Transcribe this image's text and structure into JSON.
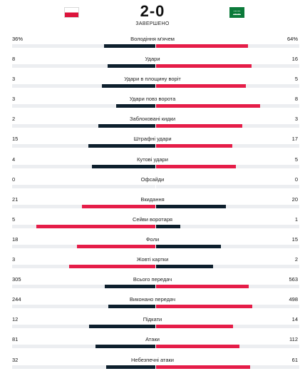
{
  "match": {
    "score": "2-0",
    "status": "ЗАВЕРШЕНО"
  },
  "colors": {
    "dark": "#0d1f2d",
    "red": "#e51d48",
    "track": "#eceef1"
  },
  "flags": {
    "home": "flag-poland-icon",
    "away": "flag-saudi-arabia-icon"
  },
  "stats": [
    {
      "name": "Володіння м'ячем",
      "home": "36%",
      "away": "64%",
      "home_val": 36,
      "away_val": 64
    },
    {
      "name": "Удари",
      "home": "8",
      "away": "16",
      "home_val": 8,
      "away_val": 16
    },
    {
      "name": "Удари в площину воріт",
      "home": "3",
      "away": "5",
      "home_val": 3,
      "away_val": 5
    },
    {
      "name": "Удари повз ворота",
      "home": "3",
      "away": "8",
      "home_val": 3,
      "away_val": 8
    },
    {
      "name": "Заблоковані кидки",
      "home": "2",
      "away": "3",
      "home_val": 2,
      "away_val": 3
    },
    {
      "name": "Штрафні удари",
      "home": "15",
      "away": "17",
      "home_val": 15,
      "away_val": 17
    },
    {
      "name": "Кутові удари",
      "home": "4",
      "away": "5",
      "home_val": 4,
      "away_val": 5
    },
    {
      "name": "Офсайди",
      "home": "0",
      "away": "0",
      "home_val": 0,
      "away_val": 0
    },
    {
      "name": "Вкидання",
      "home": "21",
      "away": "20",
      "home_val": 21,
      "away_val": 20
    },
    {
      "name": "Сейви воротаря",
      "home": "5",
      "away": "1",
      "home_val": 5,
      "away_val": 1
    },
    {
      "name": "Фоли",
      "home": "18",
      "away": "15",
      "home_val": 18,
      "away_val": 15
    },
    {
      "name": "Жовті картки",
      "home": "3",
      "away": "2",
      "home_val": 3,
      "away_val": 2
    },
    {
      "name": "Всього передач",
      "home": "305",
      "away": "563",
      "home_val": 305,
      "away_val": 563
    },
    {
      "name": "Виконано передач",
      "home": "244",
      "away": "498",
      "home_val": 244,
      "away_val": 498
    },
    {
      "name": "Підкати",
      "home": "12",
      "away": "14",
      "home_val": 12,
      "away_val": 14
    },
    {
      "name": "Атаки",
      "home": "81",
      "away": "112",
      "home_val": 81,
      "away_val": 112
    },
    {
      "name": "Небезпечні атаки",
      "home": "32",
      "away": "61",
      "home_val": 32,
      "away_val": 61
    }
  ]
}
